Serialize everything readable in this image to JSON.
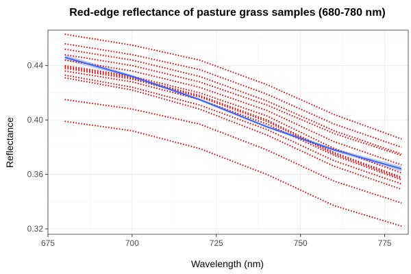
{
  "chart_data": {
    "type": "line",
    "title": "Red-edge reflectance of pasture grass samples (680-780 nm)",
    "xlabel": "Wavelength (nm)",
    "ylabel": "Reflectance",
    "xlim": [
      675,
      782
    ],
    "ylim": [
      0.316,
      0.466
    ],
    "xticks": [
      675,
      700,
      725,
      750,
      775
    ],
    "yticks": [
      0.32,
      0.36,
      0.4,
      0.44
    ],
    "ytick_labels": [
      "0.32",
      "0.36",
      "0.40",
      "0.44"
    ],
    "grid": true,
    "x": [
      680,
      700,
      720,
      740,
      760,
      780
    ],
    "series": [
      {
        "style": "dotted",
        "color": "#dd0000",
        "values": [
          0.463,
          0.455,
          0.444,
          0.426,
          0.404,
          0.386
        ]
      },
      {
        "style": "dotted",
        "color": "#dd0000",
        "values": [
          0.456,
          0.448,
          0.437,
          0.419,
          0.397,
          0.38
        ]
      },
      {
        "style": "dotted",
        "color": "#dd0000",
        "values": [
          0.452,
          0.444,
          0.432,
          0.414,
          0.392,
          0.375
        ]
      },
      {
        "style": "dotted",
        "color": "#dd0000",
        "values": [
          0.448,
          0.44,
          0.428,
          0.411,
          0.39,
          0.374
        ]
      },
      {
        "style": "dotted",
        "color": "#dd0000",
        "values": [
          0.444,
          0.436,
          0.424,
          0.407,
          0.384,
          0.367
        ]
      },
      {
        "style": "dotted",
        "color": "#dd0000",
        "values": [
          0.44,
          0.432,
          0.42,
          0.403,
          0.379,
          0.361
        ]
      },
      {
        "style": "dotted",
        "color": "#dd0000",
        "values": [
          0.439,
          0.431,
          0.418,
          0.4,
          0.376,
          0.358
        ]
      },
      {
        "style": "dotted",
        "color": "#dd0000",
        "values": [
          0.438,
          0.43,
          0.417,
          0.399,
          0.375,
          0.357
        ]
      },
      {
        "style": "dotted",
        "color": "#dd0000",
        "values": [
          0.436,
          0.428,
          0.415,
          0.397,
          0.374,
          0.356
        ]
      },
      {
        "style": "dotted",
        "color": "#dd0000",
        "values": [
          0.433,
          0.424,
          0.411,
          0.393,
          0.37,
          0.353
        ]
      },
      {
        "style": "dotted",
        "color": "#dd0000",
        "values": [
          0.431,
          0.422,
          0.408,
          0.389,
          0.366,
          0.349
        ]
      },
      {
        "style": "dotted",
        "color": "#dd0000",
        "values": [
          0.415,
          0.408,
          0.397,
          0.378,
          0.355,
          0.339
        ]
      },
      {
        "style": "dotted",
        "color": "#dd0000",
        "values": [
          0.399,
          0.392,
          0.379,
          0.36,
          0.337,
          0.322
        ]
      }
    ],
    "smooth": {
      "style": "solid",
      "color": "#3366ff",
      "ribbon_color": "#a9b8e0",
      "values": [
        0.446,
        0.432,
        0.415,
        0.395,
        0.378,
        0.364
      ],
      "band": [
        0.002,
        0.0012,
        0.0009,
        0.0009,
        0.0012,
        0.002
      ]
    }
  }
}
